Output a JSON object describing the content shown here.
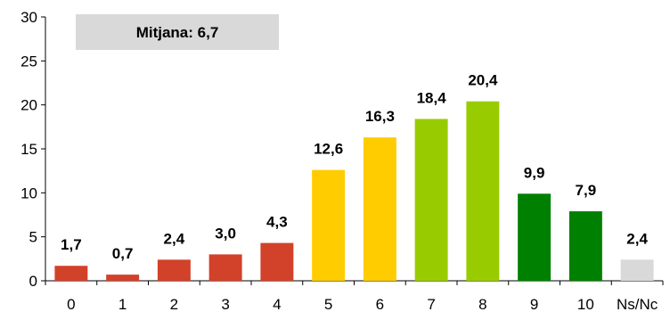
{
  "chart_data": {
    "type": "bar",
    "categories": [
      "0",
      "1",
      "2",
      "3",
      "4",
      "5",
      "6",
      "7",
      "8",
      "9",
      "10",
      "Ns/Nc"
    ],
    "values": [
      1.7,
      0.7,
      2.4,
      3.0,
      4.3,
      12.6,
      16.3,
      18.4,
      20.4,
      9.9,
      7.9,
      2.4
    ],
    "value_labels": [
      "1,7",
      "0,7",
      "2,4",
      "3,0",
      "4,3",
      "12,6",
      "16,3",
      "18,4",
      "20,4",
      "9,9",
      "7,9",
      "2,4"
    ],
    "bar_colors": [
      "#d2412a",
      "#d2412a",
      "#d2412a",
      "#d2412a",
      "#d2412a",
      "#ffcc00",
      "#ffcc00",
      "#99cc00",
      "#99cc00",
      "#008000",
      "#008000",
      "#d9d9d9"
    ],
    "ylim": [
      0,
      30
    ],
    "yticks": [
      0,
      5,
      10,
      15,
      20,
      25,
      30
    ],
    "title": "",
    "xlabel": "",
    "ylabel": "",
    "grid": false
  },
  "annotation": {
    "mean_label": "Mitjana: 6,7",
    "box_color": "#d9d9d9"
  }
}
